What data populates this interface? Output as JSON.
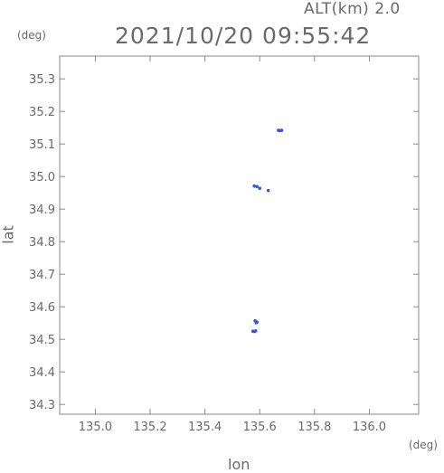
{
  "header": {
    "alt_label": "ALT(km) 2.0",
    "datetime": "2021/10/20 09:55:42"
  },
  "chart_data": {
    "type": "scatter",
    "xlabel": "lon",
    "ylabel": "lat",
    "x_unit": "(deg)",
    "y_unit": "(deg)",
    "xlim": [
      134.87,
      136.18
    ],
    "ylim": [
      34.27,
      35.37
    ],
    "x_ticks": [
      "135.0",
      "135.2",
      "135.4",
      "135.6",
      "135.8",
      "136.0"
    ],
    "y_ticks": [
      "34.3",
      "34.4",
      "34.5",
      "34.6",
      "34.7",
      "34.8",
      "34.9",
      "35.0",
      "35.1",
      "35.2",
      "35.3"
    ],
    "grid": false,
    "point_color": "#3355ee",
    "series": [
      {
        "points": [
          {
            "x": 135.668,
            "y": 35.142
          },
          {
            "x": 135.674,
            "y": 35.141
          },
          {
            "x": 135.68,
            "y": 35.142
          },
          {
            "x": 135.58,
            "y": 34.971
          },
          {
            "x": 135.59,
            "y": 34.969
          },
          {
            "x": 135.6,
            "y": 34.964
          },
          {
            "x": 135.631,
            "y": 34.957
          },
          {
            "x": 135.583,
            "y": 34.557
          },
          {
            "x": 135.587,
            "y": 34.551
          },
          {
            "x": 135.59,
            "y": 34.553
          },
          {
            "x": 135.575,
            "y": 34.525
          },
          {
            "x": 135.581,
            "y": 34.524
          },
          {
            "x": 135.585,
            "y": 34.526
          }
        ]
      }
    ]
  }
}
